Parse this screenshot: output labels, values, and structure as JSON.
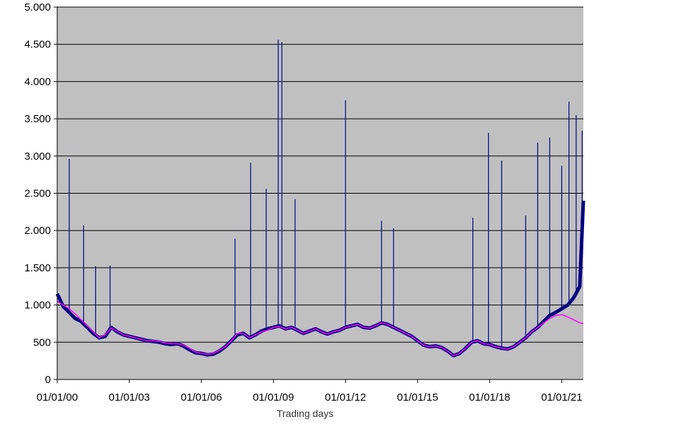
{
  "chart_data": {
    "type": "line",
    "title": "",
    "xlabel": "Trading days",
    "ylabel": "",
    "ylim": [
      0,
      5000
    ],
    "y_ticks": [
      0,
      500,
      1000,
      1500,
      2000,
      2500,
      3000,
      3500,
      4000,
      4500,
      5000
    ],
    "y_tick_labels": [
      "0",
      "500",
      "1.000",
      "1.500",
      "2.000",
      "2.500",
      "3.000",
      "3.500",
      "4.000",
      "4.500",
      "5.000"
    ],
    "x_tick_labels": [
      "01/01/00",
      "01/01/03",
      "01/01/06",
      "01/01/09",
      "01/01/12",
      "01/01/15",
      "01/01/18",
      "01/01/21"
    ],
    "x_tick_years": [
      2000,
      2003,
      2006,
      2009,
      2012,
      2015,
      2018,
      2021
    ],
    "xlim_years": [
      2000,
      2021.9
    ],
    "grid": true,
    "legend": "none",
    "colors": {
      "plot_background": "#c0c0c0",
      "daily_series": "#000080",
      "moving_average": "#ff00ff",
      "gridline": "#000000"
    },
    "series": [
      {
        "key": "daily",
        "name": "",
        "points": [
          [
            2000.0,
            1150
          ],
          [
            2000.25,
            980
          ],
          [
            2000.5,
            900
          ],
          [
            2000.75,
            820
          ],
          [
            2001.0,
            780
          ],
          [
            2001.25,
            700
          ],
          [
            2001.5,
            620
          ],
          [
            2001.75,
            560
          ],
          [
            2002.0,
            580
          ],
          [
            2002.25,
            700
          ],
          [
            2002.5,
            640
          ],
          [
            2002.75,
            600
          ],
          [
            2003.0,
            580
          ],
          [
            2003.25,
            560
          ],
          [
            2003.5,
            540
          ],
          [
            2003.75,
            520
          ],
          [
            2004.0,
            510
          ],
          [
            2004.25,
            500
          ],
          [
            2004.5,
            480
          ],
          [
            2004.75,
            470
          ],
          [
            2005.0,
            480
          ],
          [
            2005.25,
            450
          ],
          [
            2005.5,
            400
          ],
          [
            2005.75,
            360
          ],
          [
            2006.0,
            350
          ],
          [
            2006.25,
            330
          ],
          [
            2006.5,
            340
          ],
          [
            2006.75,
            380
          ],
          [
            2007.0,
            440
          ],
          [
            2007.25,
            520
          ],
          [
            2007.5,
            600
          ],
          [
            2007.75,
            620
          ],
          [
            2008.0,
            560
          ],
          [
            2008.25,
            600
          ],
          [
            2008.5,
            650
          ],
          [
            2008.75,
            680
          ],
          [
            2009.0,
            700
          ],
          [
            2009.25,
            720
          ],
          [
            2009.5,
            680
          ],
          [
            2009.75,
            700
          ],
          [
            2010.0,
            660
          ],
          [
            2010.25,
            620
          ],
          [
            2010.5,
            650
          ],
          [
            2010.75,
            680
          ],
          [
            2011.0,
            640
          ],
          [
            2011.25,
            610
          ],
          [
            2011.5,
            640
          ],
          [
            2011.75,
            660
          ],
          [
            2012.0,
            700
          ],
          [
            2012.25,
            720
          ],
          [
            2012.5,
            740
          ],
          [
            2012.75,
            700
          ],
          [
            2013.0,
            690
          ],
          [
            2013.25,
            720
          ],
          [
            2013.5,
            760
          ],
          [
            2013.75,
            740
          ],
          [
            2014.0,
            700
          ],
          [
            2014.25,
            660
          ],
          [
            2014.5,
            620
          ],
          [
            2014.75,
            580
          ],
          [
            2015.0,
            520
          ],
          [
            2015.25,
            460
          ],
          [
            2015.5,
            440
          ],
          [
            2015.75,
            450
          ],
          [
            2016.0,
            430
          ],
          [
            2016.25,
            380
          ],
          [
            2016.5,
            320
          ],
          [
            2016.75,
            350
          ],
          [
            2017.0,
            420
          ],
          [
            2017.25,
            500
          ],
          [
            2017.5,
            520
          ],
          [
            2017.75,
            480
          ],
          [
            2018.0,
            470
          ],
          [
            2018.25,
            440
          ],
          [
            2018.5,
            420
          ],
          [
            2018.75,
            410
          ],
          [
            2019.0,
            440
          ],
          [
            2019.25,
            500
          ],
          [
            2019.5,
            560
          ],
          [
            2019.75,
            640
          ],
          [
            2020.0,
            700
          ],
          [
            2020.25,
            780
          ],
          [
            2020.5,
            860
          ],
          [
            2020.75,
            900
          ],
          [
            2021.0,
            950
          ],
          [
            2021.25,
            1000
          ],
          [
            2021.5,
            1100
          ],
          [
            2021.75,
            1250
          ],
          [
            2021.9,
            2400
          ]
        ]
      },
      {
        "key": "moving_average",
        "name": "",
        "points": [
          [
            2000.0,
            1050
          ],
          [
            2000.25,
            1000
          ],
          [
            2000.5,
            950
          ],
          [
            2000.75,
            880
          ],
          [
            2001.0,
            800
          ],
          [
            2001.25,
            720
          ],
          [
            2001.5,
            640
          ],
          [
            2001.75,
            560
          ],
          [
            2002.0,
            600
          ],
          [
            2002.25,
            690
          ],
          [
            2002.5,
            650
          ],
          [
            2002.75,
            600
          ],
          [
            2003.0,
            580
          ],
          [
            2003.25,
            560
          ],
          [
            2003.5,
            540
          ],
          [
            2003.75,
            520
          ],
          [
            2004.0,
            520
          ],
          [
            2004.25,
            510
          ],
          [
            2004.5,
            490
          ],
          [
            2004.75,
            480
          ],
          [
            2005.0,
            480
          ],
          [
            2005.25,
            460
          ],
          [
            2005.5,
            420
          ],
          [
            2005.75,
            370
          ],
          [
            2006.0,
            350
          ],
          [
            2006.25,
            340
          ],
          [
            2006.5,
            350
          ],
          [
            2006.75,
            390
          ],
          [
            2007.0,
            440
          ],
          [
            2007.25,
            520
          ],
          [
            2007.5,
            620
          ],
          [
            2007.75,
            620
          ],
          [
            2008.0,
            560
          ],
          [
            2008.25,
            600
          ],
          [
            2008.5,
            640
          ],
          [
            2008.75,
            660
          ],
          [
            2009.0,
            700
          ],
          [
            2009.25,
            710
          ],
          [
            2009.5,
            680
          ],
          [
            2009.75,
            700
          ],
          [
            2010.0,
            660
          ],
          [
            2010.25,
            620
          ],
          [
            2010.5,
            650
          ],
          [
            2010.75,
            680
          ],
          [
            2011.0,
            640
          ],
          [
            2011.25,
            610
          ],
          [
            2011.5,
            640
          ],
          [
            2011.75,
            660
          ],
          [
            2012.0,
            700
          ],
          [
            2012.25,
            720
          ],
          [
            2012.5,
            740
          ],
          [
            2012.75,
            700
          ],
          [
            2013.0,
            690
          ],
          [
            2013.25,
            720
          ],
          [
            2013.5,
            760
          ],
          [
            2013.75,
            740
          ],
          [
            2014.0,
            700
          ],
          [
            2014.25,
            660
          ],
          [
            2014.5,
            620
          ],
          [
            2014.75,
            580
          ],
          [
            2015.0,
            520
          ],
          [
            2015.25,
            460
          ],
          [
            2015.5,
            440
          ],
          [
            2015.75,
            450
          ],
          [
            2016.0,
            430
          ],
          [
            2016.25,
            380
          ],
          [
            2016.5,
            320
          ],
          [
            2016.75,
            350
          ],
          [
            2017.0,
            420
          ],
          [
            2017.25,
            500
          ],
          [
            2017.5,
            520
          ],
          [
            2017.75,
            480
          ],
          [
            2018.0,
            470
          ],
          [
            2018.25,
            440
          ],
          [
            2018.5,
            420
          ],
          [
            2018.75,
            410
          ],
          [
            2019.0,
            440
          ],
          [
            2019.25,
            500
          ],
          [
            2019.5,
            560
          ],
          [
            2019.75,
            640
          ],
          [
            2020.0,
            700
          ],
          [
            2020.25,
            760
          ],
          [
            2020.5,
            820
          ],
          [
            2020.75,
            860
          ],
          [
            2021.0,
            870
          ],
          [
            2021.25,
            840
          ],
          [
            2021.5,
            800
          ],
          [
            2021.75,
            760
          ],
          [
            2021.9,
            750
          ]
        ]
      }
    ],
    "spikes": [
      [
        2000.5,
        2960
      ],
      [
        2001.1,
        2070
      ],
      [
        2001.6,
        1520
      ],
      [
        2002.2,
        1530
      ],
      [
        2007.4,
        1890
      ],
      [
        2008.05,
        2910
      ],
      [
        2008.7,
        2560
      ],
      [
        2009.2,
        4560
      ],
      [
        2009.35,
        4530
      ],
      [
        2009.9,
        2420
      ],
      [
        2012.0,
        3750
      ],
      [
        2013.5,
        2130
      ],
      [
        2014.0,
        2030
      ],
      [
        2017.3,
        2170
      ],
      [
        2017.95,
        3310
      ],
      [
        2018.5,
        2940
      ],
      [
        2019.5,
        2200
      ],
      [
        2020.0,
        3180
      ],
      [
        2020.5,
        3250
      ],
      [
        2021.0,
        2870
      ],
      [
        2021.3,
        3730
      ],
      [
        2021.6,
        3550
      ],
      [
        2021.85,
        3340
      ]
    ]
  }
}
